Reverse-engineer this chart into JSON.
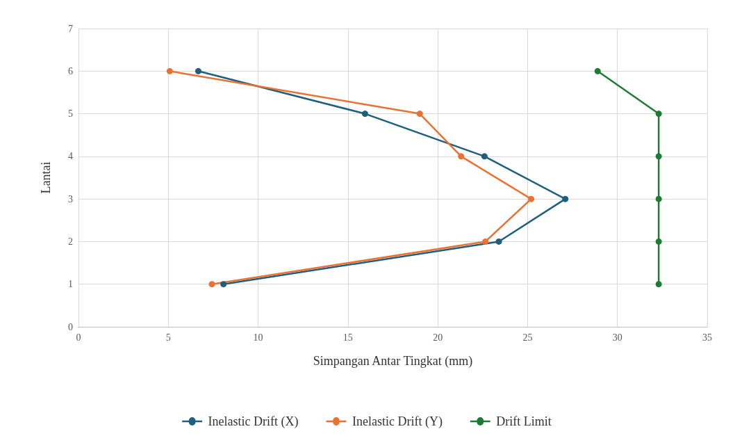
{
  "chart_data": {
    "type": "line",
    "xlabel": "Simpangan Antar Tingkat (mm)",
    "ylabel": "Lantai",
    "xlim": [
      0,
      35
    ],
    "xticks": [
      0,
      5,
      10,
      15,
      20,
      25,
      30,
      35
    ],
    "ylim": [
      0,
      7
    ],
    "yticks": [
      0,
      1,
      2,
      3,
      4,
      5,
      6,
      7
    ],
    "grid": true,
    "legend": "bottom",
    "marker": "circle",
    "line_style": "solid",
    "series": [
      {
        "name": "Inelastic Drift (X)",
        "color": "#1f5f7e",
        "x": [
          8.07,
          23.4,
          27.1,
          22.6,
          15.95,
          6.67
        ],
        "values": [
          1,
          2,
          3,
          4,
          5,
          6
        ]
      },
      {
        "name": "Inelastic Drift (Y)",
        "color": "#e97132",
        "x": [
          7.43,
          22.65,
          25.2,
          21.3,
          19.0,
          5.08
        ],
        "values": [
          1,
          2,
          3,
          4,
          5,
          6
        ]
      },
      {
        "name": "Drift Limit",
        "color": "#1e7b34",
        "x": [
          32.3,
          32.3,
          32.3,
          32.3,
          32.3,
          28.9
        ],
        "values": [
          1,
          2,
          3,
          4,
          5,
          6
        ]
      }
    ]
  }
}
